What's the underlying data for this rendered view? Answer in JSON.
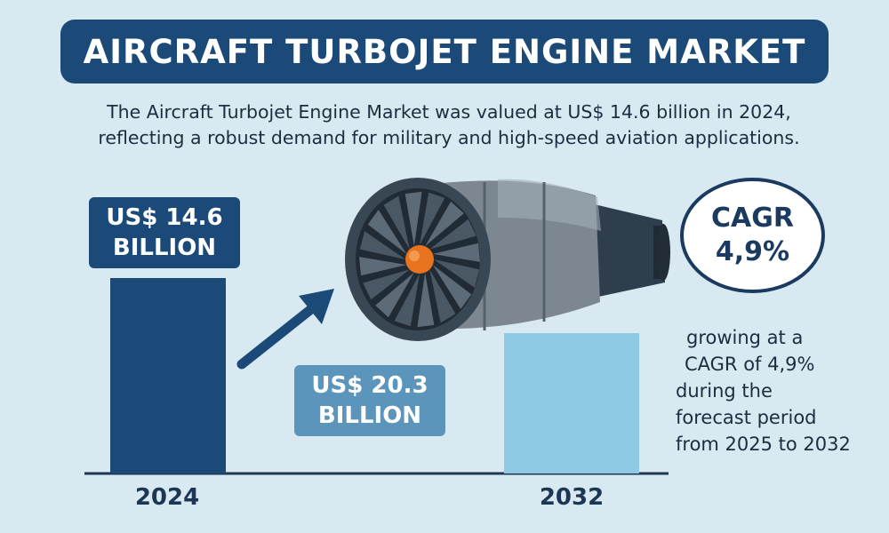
{
  "title": "AIRCRAFT TURBOJET ENGINE MARKET",
  "intro": {
    "line1": "The Aircraft Turbojet Engine Market was valued at US$ 14.6 billion in 2024,",
    "line2": "reflecting a robust demand for military and high-speed aviation applications."
  },
  "cagr_badge": {
    "label": "CAGR",
    "value": "4,9%"
  },
  "growth_note": {
    "line1": "growing at a",
    "line2": "CAGR of 4,9%",
    "line3": "during the",
    "line4": "forecast period",
    "line5": "from 2025 to 2032"
  },
  "colors": {
    "bar_2024": "#1b4a78",
    "bar_2032": "#8fc9e3",
    "banner": "#1b4a78",
    "arrow": "#1b4a78",
    "engine_accent": "#e8741f"
  },
  "icons": [
    "up-right-arrow-icon",
    "turbojet-engine-illustration"
  ],
  "chart_data": {
    "type": "bar",
    "categories": [
      "2024",
      "2032"
    ],
    "values": [
      14.6,
      20.3
    ],
    "value_labels": [
      {
        "line1": "US$ 14.6",
        "line2": "BILLION"
      },
      {
        "line1": "US$ 20.3",
        "line2": "BILLION"
      }
    ],
    "unit": "US$ billion",
    "ylim": [
      0,
      25
    ],
    "grid": false,
    "legend": "none"
  }
}
